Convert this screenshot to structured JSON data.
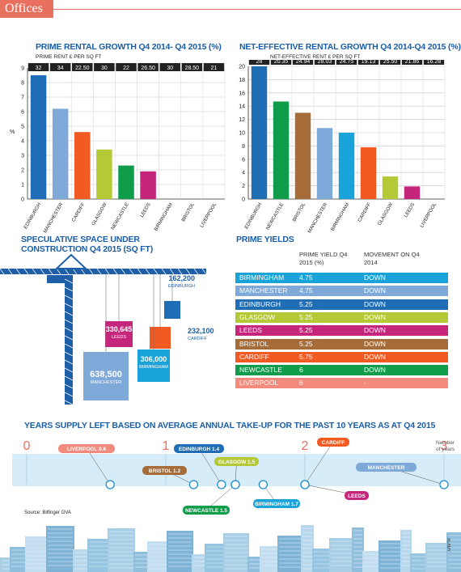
{
  "header": {
    "section_label": "Offices"
  },
  "chart_data": [
    {
      "type": "bar",
      "title": "PRIME RENTAL GROWTH Q4 2014- Q4 2015 (%)",
      "subtitle": "PRIME RENT £ PER SQ FT",
      "ylabel": "%",
      "ylim": [
        0,
        9
      ],
      "yticks": [
        0,
        1,
        2,
        3,
        4,
        5,
        6,
        7,
        8,
        9
      ],
      "categories": [
        "EDINBURGH",
        "MANCHESTER",
        "CARDIFF",
        "GLASGOW",
        "NEWCASTLE",
        "LEEDS",
        "BIRMINGHAM",
        "BRISTOL",
        "LIVERPOOL"
      ],
      "values": [
        8.5,
        6.2,
        4.6,
        3.4,
        2.3,
        1.9,
        0,
        0,
        0
      ],
      "rent_labels": [
        "32",
        "34",
        "22.50",
        "30",
        "22",
        "26.50",
        "30",
        "28.50",
        "21"
      ],
      "colors": [
        "#1f6db5",
        "#7fa9d8",
        "#f15a22",
        "#b5c937",
        "#0f9d4b",
        "#c5267b",
        "#a56c3a",
        "#7c4a28",
        "#f28b7d"
      ],
      "grid": true
    },
    {
      "type": "bar",
      "title": "NET-EFFECTIVE RENTAL GROWTH Q4 2014-Q4 2015 (%)",
      "subtitle": "NET-EFFECTIVE RENT £ PER SQ FT",
      "ylabel": "",
      "ylim": [
        0,
        20
      ],
      "yticks": [
        0,
        2,
        4,
        6,
        8,
        10,
        12,
        14,
        16,
        18,
        20
      ],
      "categories": [
        "EDINBURGH",
        "NEWCASTLE",
        "BRISTOL",
        "MANCHESTER",
        "BIRMINGHAM",
        "CARDIFF",
        "GLASGOW",
        "LEEDS",
        "LIVERPOOL"
      ],
      "values": [
        20,
        14.7,
        13,
        10.7,
        10,
        7.8,
        3.4,
        1.9,
        0
      ],
      "rent_labels": [
        "28",
        "20.35",
        "24.94",
        "28.03",
        "24.75",
        "19.13",
        "25.50",
        "21.86",
        "16.28"
      ],
      "colors": [
        "#1f6db5",
        "#0f9d4b",
        "#a56c3a",
        "#7fa9d8",
        "#1aa3d9",
        "#f15a22",
        "#b5c937",
        "#c5267b",
        "#f28b7d"
      ],
      "grid": true
    },
    {
      "type": "bar",
      "title": "SPECULATIVE SPACE UNDER CONSTRUCTION Q4 2015 (SQ FT)",
      "categories": [
        "EDINBURGH",
        "CARDIFF",
        "LEEDS",
        "BIRMINGHAM",
        "MANCHESTER"
      ],
      "values": [
        162200,
        232100,
        330645,
        306000,
        638500
      ],
      "value_labels": [
        "162,200",
        "232,100",
        "330,645",
        "306,000",
        "638,500"
      ],
      "colors": [
        "#1f6db5",
        "#f15a22",
        "#c5267b",
        "#1aa3d9",
        "#7fa9d8"
      ]
    },
    {
      "type": "table",
      "title": "PRIME YIELDS",
      "columns": [
        "",
        "PRIME YIELD Q4 2015 (%)",
        "MOVEMENT ON Q4 2014"
      ],
      "rows": [
        {
          "city": "BIRMINGHAM",
          "yield": "4.75",
          "movement": "DOWN",
          "color": "#1aa3d9"
        },
        {
          "city": "MANCHESTER",
          "yield": "4.75",
          "movement": "DOWN",
          "color": "#7fa9d8"
        },
        {
          "city": "EDINBURGH",
          "yield": "5.25",
          "movement": "DOWN",
          "color": "#1f6db5"
        },
        {
          "city": "GLASGOW",
          "yield": "5.25",
          "movement": "DOWN",
          "color": "#b5c937"
        },
        {
          "city": "LEEDS",
          "yield": "5.25",
          "movement": "DOWN",
          "color": "#c5267b"
        },
        {
          "city": "BRISTOL",
          "yield": "5.25",
          "movement": "DOWN",
          "color": "#a56c3a"
        },
        {
          "city": "CARDIFF",
          "yield": "5.75",
          "movement": "DOWN",
          "color": "#f15a22"
        },
        {
          "city": "NEWCASTLE",
          "yield": "6",
          "movement": "DOWN",
          "color": "#0f9d4b"
        },
        {
          "city": "LIVERPOOL",
          "yield": "6",
          "movement": "-",
          "color": "#f28b7d"
        }
      ]
    },
    {
      "type": "scatter",
      "title": "YEARS SUPPLY LEFT BASED ON AVERAGE ANNUAL TAKE-UP FOR THE PAST 10 YEARS AS AT Q4 2015",
      "xlabel": "Number of years",
      "xlim": [
        0,
        3
      ],
      "xticks": [
        "0",
        "1",
        "2",
        "3"
      ],
      "points": [
        {
          "city": "LIVERPOOL",
          "label_value": "0.6",
          "x": 0.6,
          "color": "#f28b7d"
        },
        {
          "city": "BRISTOL",
          "label_value": "1.2",
          "x": 1.2,
          "color": "#a56c3a"
        },
        {
          "city": "EDINBURGH",
          "label_value": "1.4",
          "x": 1.4,
          "color": "#1f6db5"
        },
        {
          "city": "GLASGOW",
          "label_value": "1.5",
          "x": 1.5,
          "color": "#b5c937"
        },
        {
          "city": "NEWCASTLE",
          "label_value": "1.5",
          "x": 1.5,
          "color": "#0f9d4b"
        },
        {
          "city": "BIRMINGHAM",
          "label_value": "1.7",
          "x": 1.7,
          "color": "#1aa3d9"
        },
        {
          "city": "CARDIFF",
          "label_value": "",
          "x": 2.0,
          "color": "#f15a22"
        },
        {
          "city": "LEEDS",
          "label_value": "",
          "x": 2.0,
          "color": "#c5267b"
        },
        {
          "city": "MANCHESTER",
          "label_value": "",
          "x": 3.0,
          "color": "#7fa9d8"
        }
      ]
    }
  ],
  "footer": {
    "source": "Source: Bilfinger GVA",
    "credit": "ALAMY"
  }
}
